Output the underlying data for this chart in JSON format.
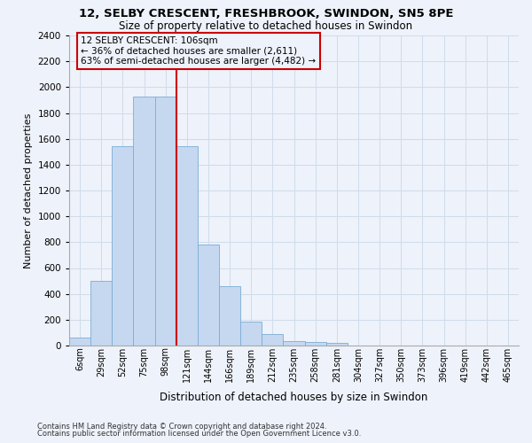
{
  "title1": "12, SELBY CRESCENT, FRESHBROOK, SWINDON, SN5 8PE",
  "title2": "Size of property relative to detached houses in Swindon",
  "xlabel": "Distribution of detached houses by size in Swindon",
  "ylabel": "Number of detached properties",
  "categories": [
    "6sqm",
    "29sqm",
    "52sqm",
    "75sqm",
    "98sqm",
    "121sqm",
    "144sqm",
    "166sqm",
    "189sqm",
    "212sqm",
    "235sqm",
    "258sqm",
    "281sqm",
    "304sqm",
    "327sqm",
    "350sqm",
    "373sqm",
    "396sqm",
    "419sqm",
    "442sqm",
    "465sqm"
  ],
  "bar_heights": [
    60,
    500,
    1540,
    1930,
    1930,
    1540,
    780,
    460,
    185,
    90,
    35,
    30,
    22,
    0,
    0,
    0,
    0,
    0,
    0,
    0,
    0
  ],
  "bar_color": "#c5d8f0",
  "bar_edge_color": "#7aadd4",
  "grid_color": "#d0dcea",
  "vline_x": 4.5,
  "vline_color": "#cc0000",
  "annotation_title": "12 SELBY CRESCENT: 106sqm",
  "annotation_line1": "← 36% of detached houses are smaller (2,611)",
  "annotation_line2": "63% of semi-detached houses are larger (4,482) →",
  "annotation_box_edgecolor": "#cc0000",
  "ylim_max": 2400,
  "yticks": [
    0,
    200,
    400,
    600,
    800,
    1000,
    1200,
    1400,
    1600,
    1800,
    2000,
    2200,
    2400
  ],
  "footnote1": "Contains HM Land Registry data © Crown copyright and database right 2024.",
  "footnote2": "Contains public sector information licensed under the Open Government Licence v3.0.",
  "bg_color": "#eef2fa"
}
